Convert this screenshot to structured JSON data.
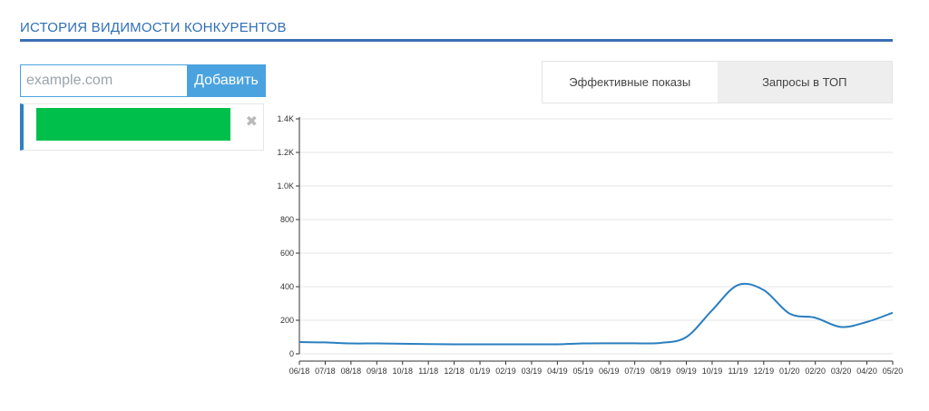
{
  "header": {
    "title": "ИСТОРИЯ ВИДИМОСТИ КОНКУРЕНТОВ"
  },
  "add_form": {
    "placeholder": "example.com",
    "button_label": "Добавить"
  },
  "competitors": [
    {
      "color": "#00c04b",
      "remove_icon": "close-icon",
      "remove_glyph": "✖"
    }
  ],
  "tabs": [
    {
      "label": "Эффективные показы",
      "active": true
    },
    {
      "label": "Запросы в ТОП",
      "active": false
    }
  ],
  "chart_data": {
    "type": "line",
    "x": [
      "06/18",
      "07/18",
      "08/18",
      "09/18",
      "10/18",
      "11/18",
      "12/18",
      "01/19",
      "02/19",
      "03/19",
      "04/19",
      "05/19",
      "06/19",
      "07/19",
      "08/19",
      "09/19",
      "10/19",
      "11/19",
      "12/19",
      "01/20",
      "02/20",
      "03/20",
      "04/20",
      "05/20"
    ],
    "series": [
      {
        "color": "#2a7fc0",
        "values": [
          70,
          68,
          62,
          62,
          60,
          58,
          57,
          57,
          57,
          57,
          57,
          62,
          63,
          63,
          65,
          100,
          260,
          410,
          380,
          240,
          215,
          160,
          190,
          245
        ]
      }
    ],
    "yticks": [
      {
        "value": 0,
        "label": "0"
      },
      {
        "value": 200,
        "label": "200"
      },
      {
        "value": 400,
        "label": "400"
      },
      {
        "value": 600,
        "label": "600"
      },
      {
        "value": 800,
        "label": "800"
      },
      {
        "value": 1000,
        "label": "1.0K"
      },
      {
        "value": 1200,
        "label": "1.2K"
      },
      {
        "value": 1400,
        "label": "1.4K"
      }
    ],
    "ylim": [
      0,
      1400
    ],
    "grid": true,
    "legend": "none"
  }
}
